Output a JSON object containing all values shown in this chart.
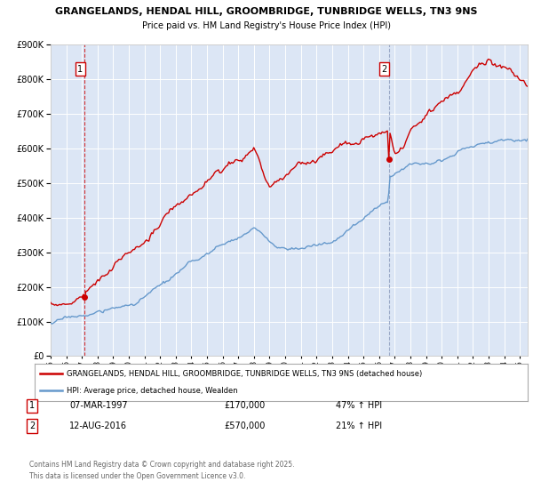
{
  "title_line1": "GRANGELANDS, HENDAL HILL, GROOMBRIDGE, TUNBRIDGE WELLS, TN3 9NS",
  "title_line2": "Price paid vs. HM Land Registry's House Price Index (HPI)",
  "plot_bg_color": "#dce6f5",
  "grid_color": "#ffffff",
  "red_color": "#cc0000",
  "blue_color": "#6699cc",
  "sale1_date_num": 1997.18,
  "sale1_price": 170000,
  "sale1_label": "07-MAR-1997",
  "sale1_amount": "£170,000",
  "sale1_pct": "47% ↑ HPI",
  "sale2_date_num": 2016.62,
  "sale2_price": 570000,
  "sale2_label": "12-AUG-2016",
  "sale2_amount": "£570,000",
  "sale2_pct": "21% ↑ HPI",
  "legend_label_red": "GRANGELANDS, HENDAL HILL, GROOMBRIDGE, TUNBRIDGE WELLS, TN3 9NS (detached house)",
  "legend_label_blue": "HPI: Average price, detached house, Wealden",
  "footer": "Contains HM Land Registry data © Crown copyright and database right 2025.\nThis data is licensed under the Open Government Licence v3.0.",
  "xmin": 1995.0,
  "xmax": 2025.5,
  "ymin": 0,
  "ymax": 900000
}
